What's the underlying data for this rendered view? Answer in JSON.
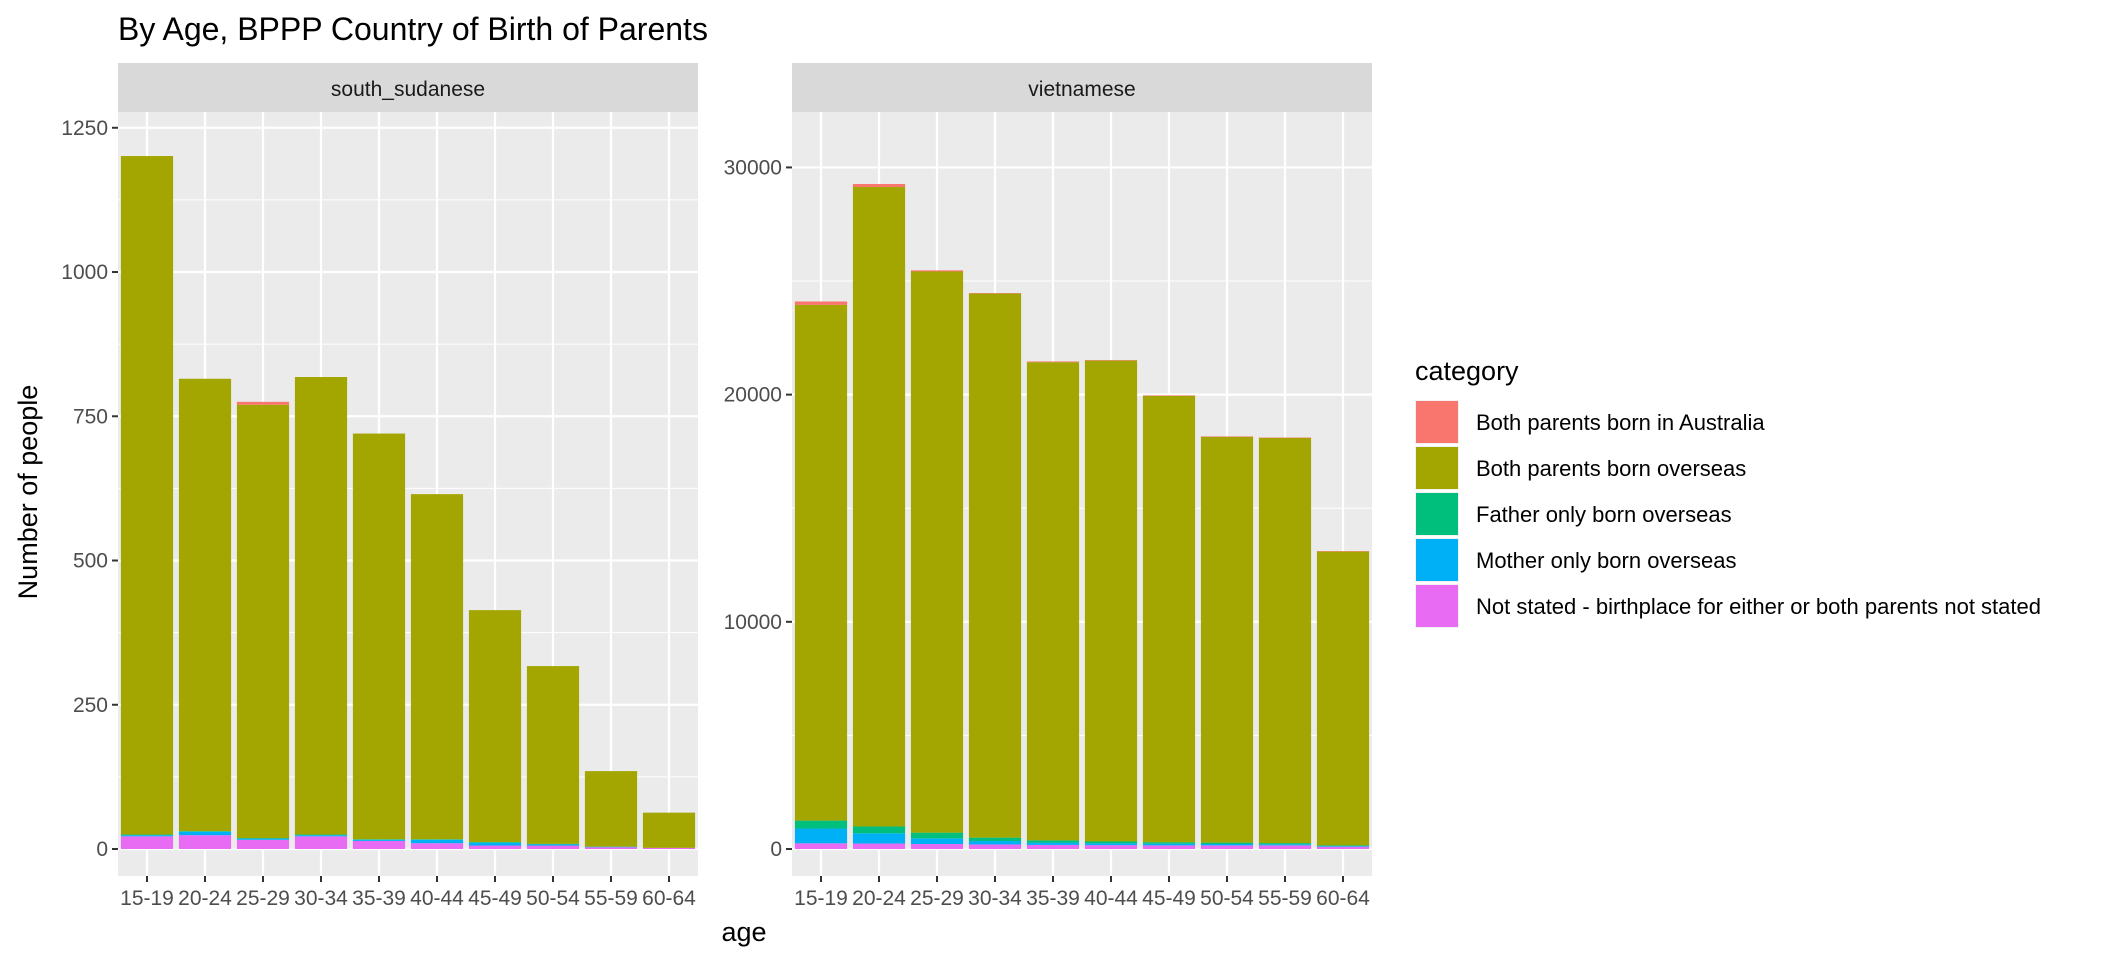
{
  "chart_data": {
    "type": "bar",
    "stacked": true,
    "title": "By Age,  BPPP Country of Birth of Parents",
    "xlabel": "age",
    "ylabel": "Number of people",
    "categories": [
      "15-19",
      "20-24",
      "25-29",
      "30-34",
      "35-39",
      "40-44",
      "45-49",
      "50-54",
      "55-59",
      "60-64"
    ],
    "grid": true,
    "legend": {
      "title": "category",
      "position": "right",
      "entries": [
        {
          "name": "Both parents born in Australia",
          "color": "#F8766D"
        },
        {
          "name": "Both parents born overseas",
          "color": "#A3A500"
        },
        {
          "name": "Father only born overseas",
          "color": "#00BF7D"
        },
        {
          "name": "Mother only born overseas",
          "color": "#00B0F6"
        },
        {
          "name": "Not stated - birthplace for either or both parents not stated",
          "color": "#E76BF3"
        }
      ]
    },
    "facets": [
      {
        "name": "south_sudanese",
        "ylim": [
          0,
          1260
        ],
        "yticks": [
          0,
          250,
          500,
          750,
          1000,
          1250
        ],
        "series": [
          {
            "name": "Not stated - birthplace for either or both parents not stated",
            "values": [
              22,
              24,
              16,
              22,
              14,
              10,
              6,
              6,
              3,
              2
            ]
          },
          {
            "name": "Mother only born overseas",
            "values": [
              2,
              6,
              2,
              2,
              2,
              6,
              5,
              2,
              1,
              0
            ]
          },
          {
            "name": "Father only born overseas",
            "values": [
              1,
              1,
              1,
              1,
              1,
              1,
              1,
              1,
              0,
              0
            ]
          },
          {
            "name": "Both parents born overseas",
            "values": [
              1176,
              784,
              751,
              793,
              703,
              598,
              402,
              308,
              131,
              61
            ]
          },
          {
            "name": "Both parents born in Australia",
            "values": [
              0,
              0,
              5,
              0,
              0,
              0,
              0,
              0,
              0,
              0
            ]
          }
        ]
      },
      {
        "name": "vietnamese",
        "ylim": [
          0,
          32000
        ],
        "yticks": [
          0,
          10000,
          20000,
          30000
        ],
        "series": [
          {
            "name": "Not stated - birthplace for either or both parents not stated",
            "values": [
              250,
              240,
              220,
              200,
              180,
              170,
              160,
              160,
              160,
              100
            ]
          },
          {
            "name": "Mother only born overseas",
            "values": [
              650,
              450,
              250,
              150,
              100,
              80,
              70,
              60,
              50,
              30
            ]
          },
          {
            "name": "Father only born overseas",
            "values": [
              350,
              300,
              250,
              150,
              100,
              80,
              70,
              60,
              50,
              30
            ]
          },
          {
            "name": "Both parents born overseas",
            "values": [
              22700,
              28150,
              24700,
              23950,
              21050,
              21170,
              19650,
              17870,
              17840,
              12940
            ]
          },
          {
            "name": "Both parents born in Australia",
            "values": [
              150,
              130,
              50,
              20,
              30,
              20,
              20,
              10,
              10,
              10
            ]
          }
        ]
      }
    ]
  }
}
